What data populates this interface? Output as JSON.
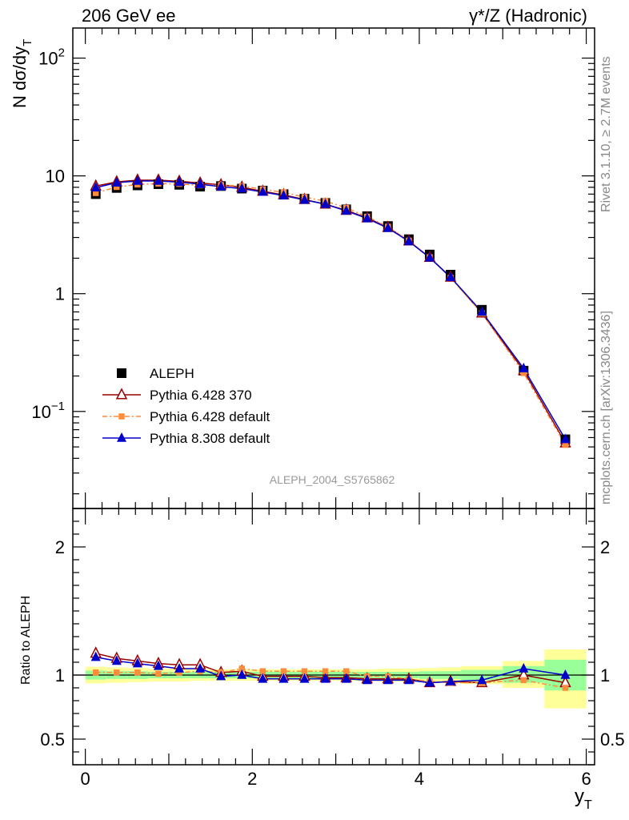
{
  "header": {
    "left_label": "206 GeV ee",
    "right_label": "γ*/Z (Hadronic)"
  },
  "side_labels": {
    "rivet": "Rivet 3.1.10, ≥ 2.7M events",
    "mcplots": "mcplots.cern.ch [arXiv:1306.3436]"
  },
  "watermark": "ALEPH_2004_S5765862",
  "main_plot": {
    "ylabel": "N dσ/dy",
    "ylabel_sub": "T",
    "yscale": "log",
    "ylim": [
      0.015,
      180
    ],
    "y_ticks": [
      {
        "value": 0.1,
        "base": "10",
        "exp": "−1"
      },
      {
        "value": 1,
        "base": "1",
        "exp": ""
      },
      {
        "value": 10,
        "base": "10",
        "exp": ""
      },
      {
        "value": 100,
        "base": "10",
        "exp": "2"
      }
    ]
  },
  "ratio_plot": {
    "ylabel": "Ratio to ALEPH",
    "ylim": [
      0.3,
      2.3
    ],
    "y_ticks": [
      {
        "value": 0.5,
        "label": "0.5"
      },
      {
        "value": 1,
        "label": "1"
      },
      {
        "value": 2,
        "label": "2"
      }
    ]
  },
  "x_axis": {
    "label": "y",
    "label_sub": "T",
    "xlim": [
      -0.15,
      6.1
    ],
    "ticks": [
      {
        "value": 0,
        "label": "0"
      },
      {
        "value": 2,
        "label": "2"
      },
      {
        "value": 4,
        "label": "4"
      },
      {
        "value": 6,
        "label": "6"
      }
    ]
  },
  "legend": {
    "placement": "lower-left",
    "entries": [
      {
        "label": "ALEPH",
        "series": "data"
      },
      {
        "label": "Pythia 6.428 370",
        "series": "p370"
      },
      {
        "label": "Pythia 6.428 default",
        "series": "p6def"
      },
      {
        "label": "Pythia 8.308 default",
        "series": "p8def"
      }
    ]
  },
  "colors": {
    "data": "#000000",
    "p370": "#990000",
    "p6def": "#ff8c3a",
    "p8def": "#0000cc",
    "band_inner": "#99ff99",
    "band_outer": "#ffff99"
  },
  "chart_data": {
    "type": "line",
    "x": [
      0.125,
      0.375,
      0.625,
      0.875,
      1.125,
      1.375,
      1.625,
      1.875,
      2.125,
      2.375,
      2.625,
      2.875,
      3.125,
      3.375,
      3.625,
      3.875,
      4.125,
      4.375,
      4.75,
      5.25,
      5.75
    ],
    "x_bins": [
      [
        0,
        0.25
      ],
      [
        0.25,
        0.5
      ],
      [
        0.5,
        0.75
      ],
      [
        0.75,
        1
      ],
      [
        1,
        1.25
      ],
      [
        1.25,
        1.5
      ],
      [
        1.5,
        1.75
      ],
      [
        1.75,
        2
      ],
      [
        2,
        2.25
      ],
      [
        2.25,
        2.5
      ],
      [
        2.5,
        2.75
      ],
      [
        2.75,
        3
      ],
      [
        3,
        3.25
      ],
      [
        3.25,
        3.5
      ],
      [
        3.5,
        3.75
      ],
      [
        3.75,
        4
      ],
      [
        4,
        4.25
      ],
      [
        4.25,
        4.5
      ],
      [
        4.5,
        5
      ],
      [
        5,
        5.5
      ],
      [
        5.5,
        6
      ]
    ],
    "series": [
      {
        "name": "ALEPH",
        "key": "data",
        "values": [
          7.0,
          7.9,
          8.3,
          8.5,
          8.4,
          8.1,
          8.2,
          7.8,
          7.5,
          7.0,
          6.4,
          5.9,
          5.2,
          4.55,
          3.75,
          2.9,
          2.15,
          1.45,
          0.73,
          0.222,
          0.058
        ]
      },
      {
        "name": "Pythia 6.428 370",
        "key": "p370",
        "values": [
          8.2,
          8.9,
          9.2,
          9.2,
          9.0,
          8.7,
          8.4,
          8.0,
          7.4,
          6.9,
          6.3,
          5.75,
          5.1,
          4.4,
          3.65,
          2.8,
          2.03,
          1.38,
          0.685,
          0.222,
          0.054
        ]
      },
      {
        "name": "Pythia 6.428 default",
        "key": "p6def",
        "values": [
          7.15,
          8.05,
          8.45,
          8.6,
          8.55,
          8.3,
          8.35,
          8.2,
          7.7,
          7.25,
          6.6,
          6.1,
          5.35,
          4.5,
          3.7,
          2.82,
          2.04,
          1.36,
          0.68,
          0.212,
          0.052
        ]
      },
      {
        "name": "Pythia 8.308 default",
        "key": "p8def",
        "values": [
          7.95,
          8.75,
          9.05,
          9.05,
          8.85,
          8.5,
          8.1,
          7.8,
          7.3,
          6.8,
          6.25,
          5.75,
          5.05,
          4.35,
          3.6,
          2.78,
          2.02,
          1.38,
          0.7,
          0.232,
          0.058
        ]
      }
    ],
    "ratio_series": [
      {
        "key": "p370",
        "values": [
          1.17,
          1.13,
          1.11,
          1.09,
          1.08,
          1.08,
          1.02,
          1.03,
          0.99,
          0.99,
          0.99,
          0.98,
          0.98,
          0.97,
          0.97,
          0.97,
          0.94,
          0.95,
          0.94,
          1.0,
          0.94
        ]
      },
      {
        "key": "p6def",
        "values": [
          1.02,
          1.02,
          1.02,
          1.01,
          1.02,
          1.03,
          1.02,
          1.05,
          1.03,
          1.03,
          1.03,
          1.03,
          1.03,
          0.99,
          0.99,
          0.97,
          0.95,
          0.94,
          0.94,
          0.96,
          0.9
        ]
      },
      {
        "key": "p8def",
        "values": [
          1.14,
          1.11,
          1.09,
          1.07,
          1.05,
          1.05,
          0.99,
          1.0,
          0.97,
          0.97,
          0.97,
          0.97,
          0.97,
          0.96,
          0.96,
          0.96,
          0.94,
          0.95,
          0.96,
          1.05,
          1.0
        ]
      }
    ],
    "ratio_band_outer": [
      [
        0.935,
        1.065
      ],
      [
        0.94,
        1.06
      ],
      [
        0.945,
        1.055
      ],
      [
        0.95,
        1.05
      ],
      [
        0.95,
        1.05
      ],
      [
        0.955,
        1.045
      ],
      [
        0.955,
        1.045
      ],
      [
        0.955,
        1.045
      ],
      [
        0.955,
        1.045
      ],
      [
        0.955,
        1.045
      ],
      [
        0.955,
        1.045
      ],
      [
        0.955,
        1.045
      ],
      [
        0.955,
        1.045
      ],
      [
        0.955,
        1.045
      ],
      [
        0.95,
        1.05
      ],
      [
        0.95,
        1.05
      ],
      [
        0.945,
        1.055
      ],
      [
        0.94,
        1.06
      ],
      [
        0.93,
        1.07
      ],
      [
        0.9,
        1.11
      ],
      [
        0.74,
        1.2
      ]
    ],
    "ratio_band_inner": [
      [
        0.965,
        1.035
      ],
      [
        0.97,
        1.03
      ],
      [
        0.97,
        1.03
      ],
      [
        0.975,
        1.025
      ],
      [
        0.975,
        1.025
      ],
      [
        0.975,
        1.025
      ],
      [
        0.975,
        1.025
      ],
      [
        0.975,
        1.025
      ],
      [
        0.975,
        1.025
      ],
      [
        0.975,
        1.025
      ],
      [
        0.975,
        1.025
      ],
      [
        0.975,
        1.025
      ],
      [
        0.975,
        1.025
      ],
      [
        0.975,
        1.025
      ],
      [
        0.975,
        1.025
      ],
      [
        0.975,
        1.025
      ],
      [
        0.97,
        1.03
      ],
      [
        0.97,
        1.03
      ],
      [
        0.96,
        1.04
      ],
      [
        0.94,
        1.07
      ],
      [
        0.88,
        1.12
      ]
    ]
  }
}
